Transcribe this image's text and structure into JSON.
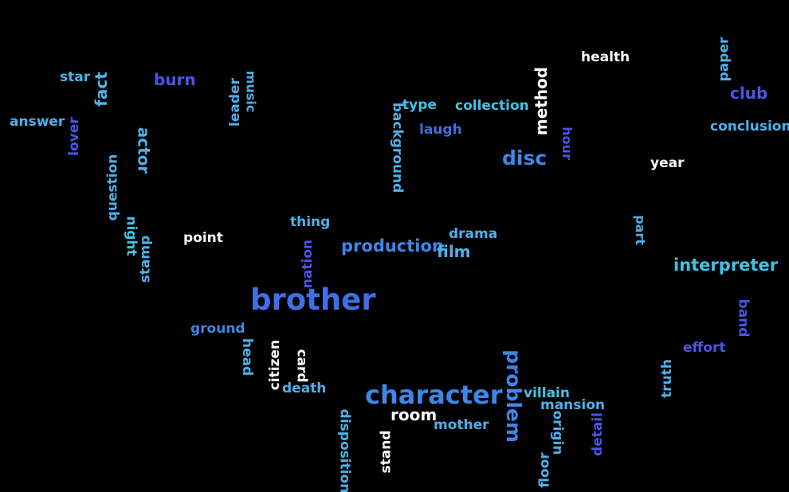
{
  "words": [
    {
      "text": "health"
    },
    {
      "text": "paper"
    },
    {
      "text": "star"
    },
    {
      "text": "fact"
    },
    {
      "text": "burn"
    },
    {
      "text": "leader"
    },
    {
      "text": "music"
    },
    {
      "text": "method"
    },
    {
      "text": "club"
    },
    {
      "text": "type"
    },
    {
      "text": "collection"
    },
    {
      "text": "answer"
    },
    {
      "text": "lover"
    },
    {
      "text": "actor"
    },
    {
      "text": "background"
    },
    {
      "text": "laugh"
    },
    {
      "text": "hour"
    },
    {
      "text": "conclusion"
    },
    {
      "text": "disc"
    },
    {
      "text": "year"
    },
    {
      "text": "question"
    },
    {
      "text": "thing"
    },
    {
      "text": "part"
    },
    {
      "text": "night"
    },
    {
      "text": "point"
    },
    {
      "text": "drama"
    },
    {
      "text": "stamp"
    },
    {
      "text": "production"
    },
    {
      "text": "film"
    },
    {
      "text": "nation"
    },
    {
      "text": "interpreter"
    },
    {
      "text": "brother"
    },
    {
      "text": "band"
    },
    {
      "text": "ground"
    },
    {
      "text": "effort"
    },
    {
      "text": "head"
    },
    {
      "text": "citizen"
    },
    {
      "text": "card"
    },
    {
      "text": "problem"
    },
    {
      "text": "truth"
    },
    {
      "text": "death"
    },
    {
      "text": "character"
    },
    {
      "text": "villain"
    },
    {
      "text": "room"
    },
    {
      "text": "mansion"
    },
    {
      "text": "mother"
    },
    {
      "text": "origin"
    },
    {
      "text": "detail"
    },
    {
      "text": "disposition"
    },
    {
      "text": "stand"
    },
    {
      "text": "floor"
    }
  ]
}
